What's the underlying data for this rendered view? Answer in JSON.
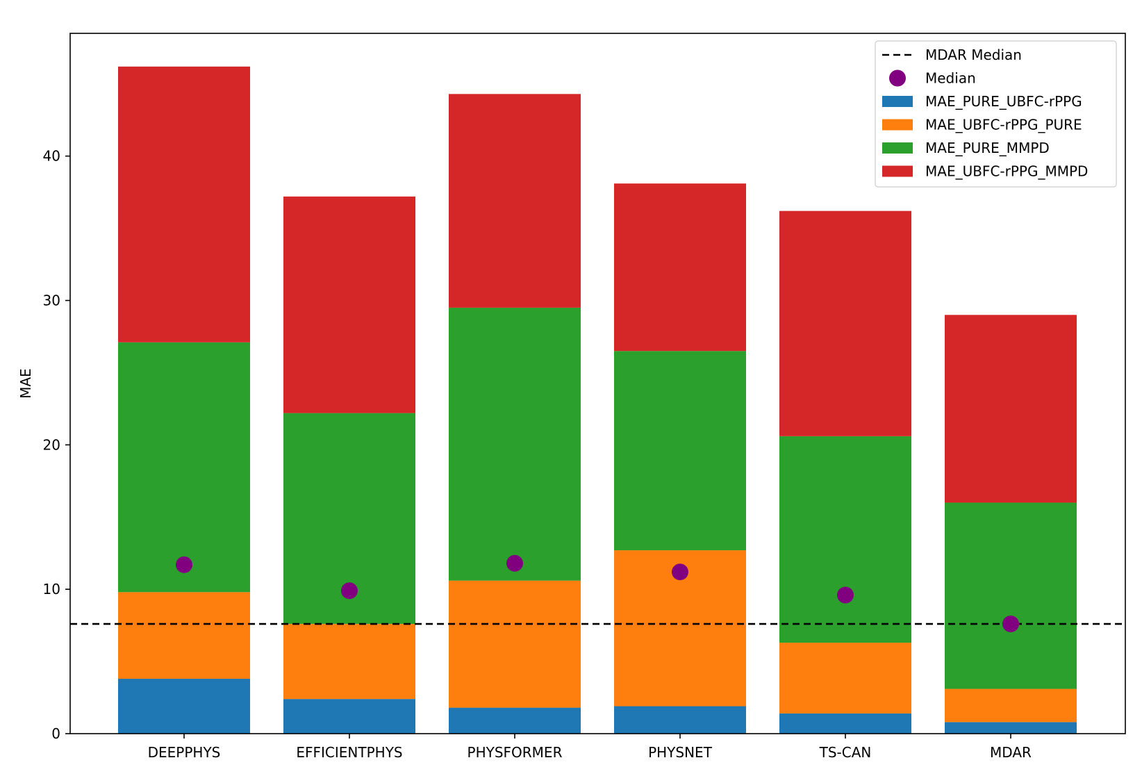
{
  "chart_data": {
    "type": "bar",
    "stacked": true,
    "title": "",
    "xlabel": "",
    "ylabel": "MAE",
    "ylim": [
      0,
      48.5
    ],
    "yticks": [
      0,
      10,
      20,
      30,
      40
    ],
    "categories": [
      "DEEPPHYS",
      "EFFICIENTPHYS",
      "PHYSFORMER",
      "PHYSNET",
      "TS-CAN",
      "MDAR"
    ],
    "series": [
      {
        "name": "MAE_PURE_UBFC-rPPG",
        "color": "#1f77b4",
        "values": [
          3.8,
          2.4,
          1.8,
          1.9,
          1.4,
          0.8
        ]
      },
      {
        "name": "MAE_UBFC-rPPG_PURE",
        "color": "#ff7f0e",
        "values": [
          6.0,
          5.2,
          8.8,
          10.8,
          4.9,
          2.3
        ]
      },
      {
        "name": "MAE_PURE_MMPD",
        "color": "#2ca02c",
        "values": [
          17.3,
          14.6,
          18.9,
          13.8,
          14.3,
          12.9
        ]
      },
      {
        "name": "MAE_UBFC-rPPG_MMPD",
        "color": "#d62728",
        "values": [
          19.1,
          15.0,
          14.8,
          11.6,
          15.6,
          13.0
        ]
      }
    ],
    "median_points": {
      "name": "Median",
      "color": "#800080",
      "values": [
        11.7,
        9.9,
        11.8,
        11.2,
        9.6,
        7.6
      ]
    },
    "reference_line": {
      "name": "MDAR Median",
      "value": 7.6,
      "color": "#000000",
      "style": "dashed"
    },
    "legend": {
      "position": "top-right",
      "entries": [
        "MDAR Median",
        "Median",
        "MAE_PURE_UBFC-rPPG",
        "MAE_UBFC-rPPG_PURE",
        "MAE_PURE_MMPD",
        "MAE_UBFC-rPPG_MMPD"
      ]
    }
  }
}
